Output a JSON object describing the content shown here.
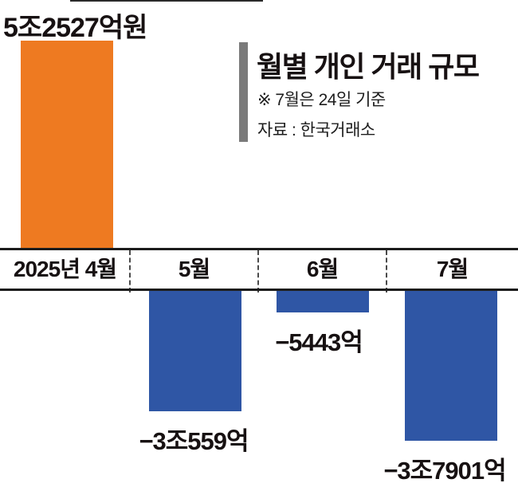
{
  "header": {
    "title": "월별 개인 거래 규모",
    "note": "※ 7월은 24일 기준",
    "source": "자료 : 한국거래소"
  },
  "axis": {
    "months": [
      "2025년 4월",
      "5월",
      "6월",
      "7월"
    ]
  },
  "chart_data": {
    "type": "bar",
    "title": "월별 개인 거래 규모",
    "note": "※ 7월은 24일 기준",
    "source": "자료 : 한국거래소",
    "categories": [
      "2025년 4월",
      "5월",
      "6월",
      "7월"
    ],
    "values": [
      52527,
      -30559,
      -5443,
      -37901
    ],
    "unit": "억원",
    "labels": [
      "5조2527억원",
      "−3조559억",
      "−5443억",
      "−3조7901억"
    ],
    "colors": {
      "positive": "#ee7a21",
      "negative": "#2f56a5",
      "accent_bar": "#7a7a7a",
      "axis_line": "#1c1c1c"
    },
    "baseline": 0,
    "grid": false,
    "legend": false
  }
}
